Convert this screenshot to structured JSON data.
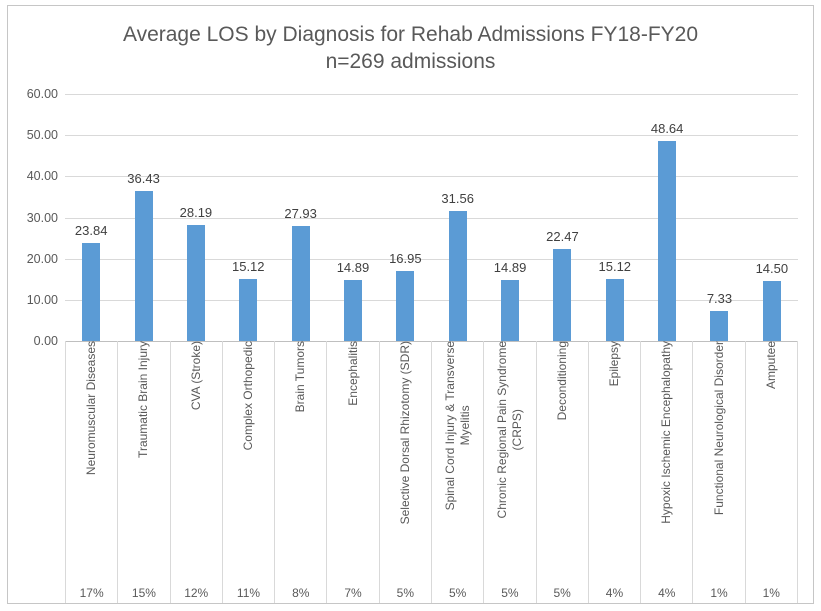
{
  "chart_data": {
    "type": "bar",
    "title": "Average LOS by Diagnosis for Rehab Admissions FY18-FY20\nn=269 admissions",
    "categories": [
      "Neuromuscular Diseases",
      "Traumatic Brain Injury",
      "CVA (Stroke)",
      "Complex Orthopedic",
      "Brain Tumors",
      "Encephalitis",
      "Selective Dorsal Rhizotomy (SDR)",
      "Spinal Cord Injury & Transverse\nMyelitis",
      "Chronic Regional Pain Syndrome\n(CRPS)",
      "Deconditioning",
      "Epilepsy",
      "Hypoxic Ischemic Encephalopathy",
      "Functional Neurological Disorder",
      "Amputee"
    ],
    "values": [
      23.84,
      36.43,
      28.19,
      15.12,
      27.93,
      14.89,
      16.95,
      31.56,
      14.89,
      22.47,
      15.12,
      48.64,
      7.33,
      14.5
    ],
    "percent_row": [
      "17%",
      "15%",
      "12%",
      "11%",
      "8%",
      "7%",
      "5%",
      "5%",
      "5%",
      "5%",
      "4%",
      "4%",
      "1%",
      "1%"
    ],
    "yticks": [
      0,
      10,
      20,
      30,
      40,
      50,
      60
    ],
    "ylim": [
      0,
      60
    ],
    "value_label_decimals": 2,
    "xlabel": "",
    "ylabel": "",
    "legend": "none",
    "grid": "horizontal",
    "colors": {
      "bar": "#5B9BD5",
      "gridline": "#D9D9D9",
      "axis_line": "#BFBFBF",
      "axis_text": "#595959",
      "value_text": "#404040",
      "frame_border": "#C6C6C6"
    }
  }
}
